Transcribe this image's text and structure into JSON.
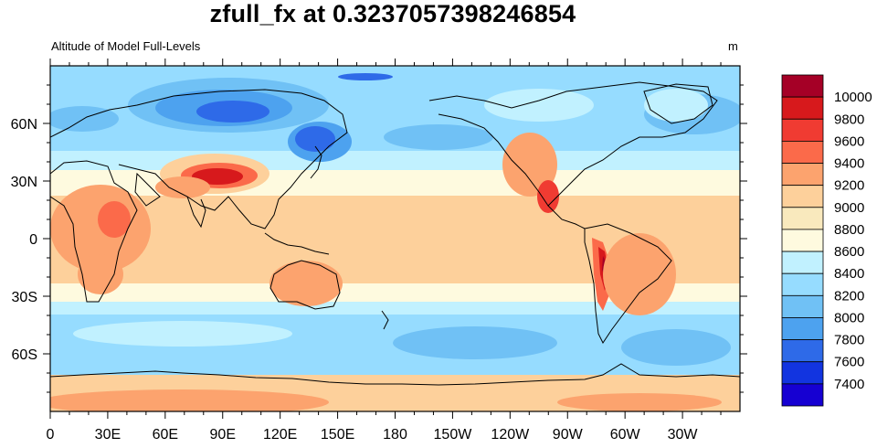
{
  "title": "zfull_fx at 0.3237057398246854",
  "subtitle_left": "Altitude of Model Full-Levels",
  "subtitle_right": "m",
  "map": {
    "projection": "cylindrical equidistant",
    "center_longitude": 180,
    "lon_range": [
      0,
      360
    ],
    "lat_range": [
      -90,
      90
    ],
    "x_tick_labels": [
      "0",
      "30E",
      "60E",
      "90E",
      "120E",
      "150E",
      "180",
      "150W",
      "120W",
      "90W",
      "60W",
      "30W"
    ],
    "y_tick_labels": [
      "60N",
      "30N",
      "0",
      "30S",
      "60S"
    ],
    "coastlines": true,
    "fill": "contour"
  },
  "colorbar": {
    "orientation": "vertical",
    "levels": [
      "10000",
      "9800",
      "9600",
      "9400",
      "9200",
      "9000",
      "8800",
      "8600",
      "8400",
      "8200",
      "8000",
      "7800",
      "7600",
      "7400"
    ],
    "colors": [
      "#a50026",
      "#d7191c",
      "#f03b32",
      "#fb6a4a",
      "#fca36e",
      "#fdd09b",
      "#f9e9bd",
      "#fefadf",
      "#c1f1ff",
      "#96dcff",
      "#70c1f5",
      "#4da2ef",
      "#2e6ae8",
      "#1234e0",
      "#1600d2"
    ]
  }
}
